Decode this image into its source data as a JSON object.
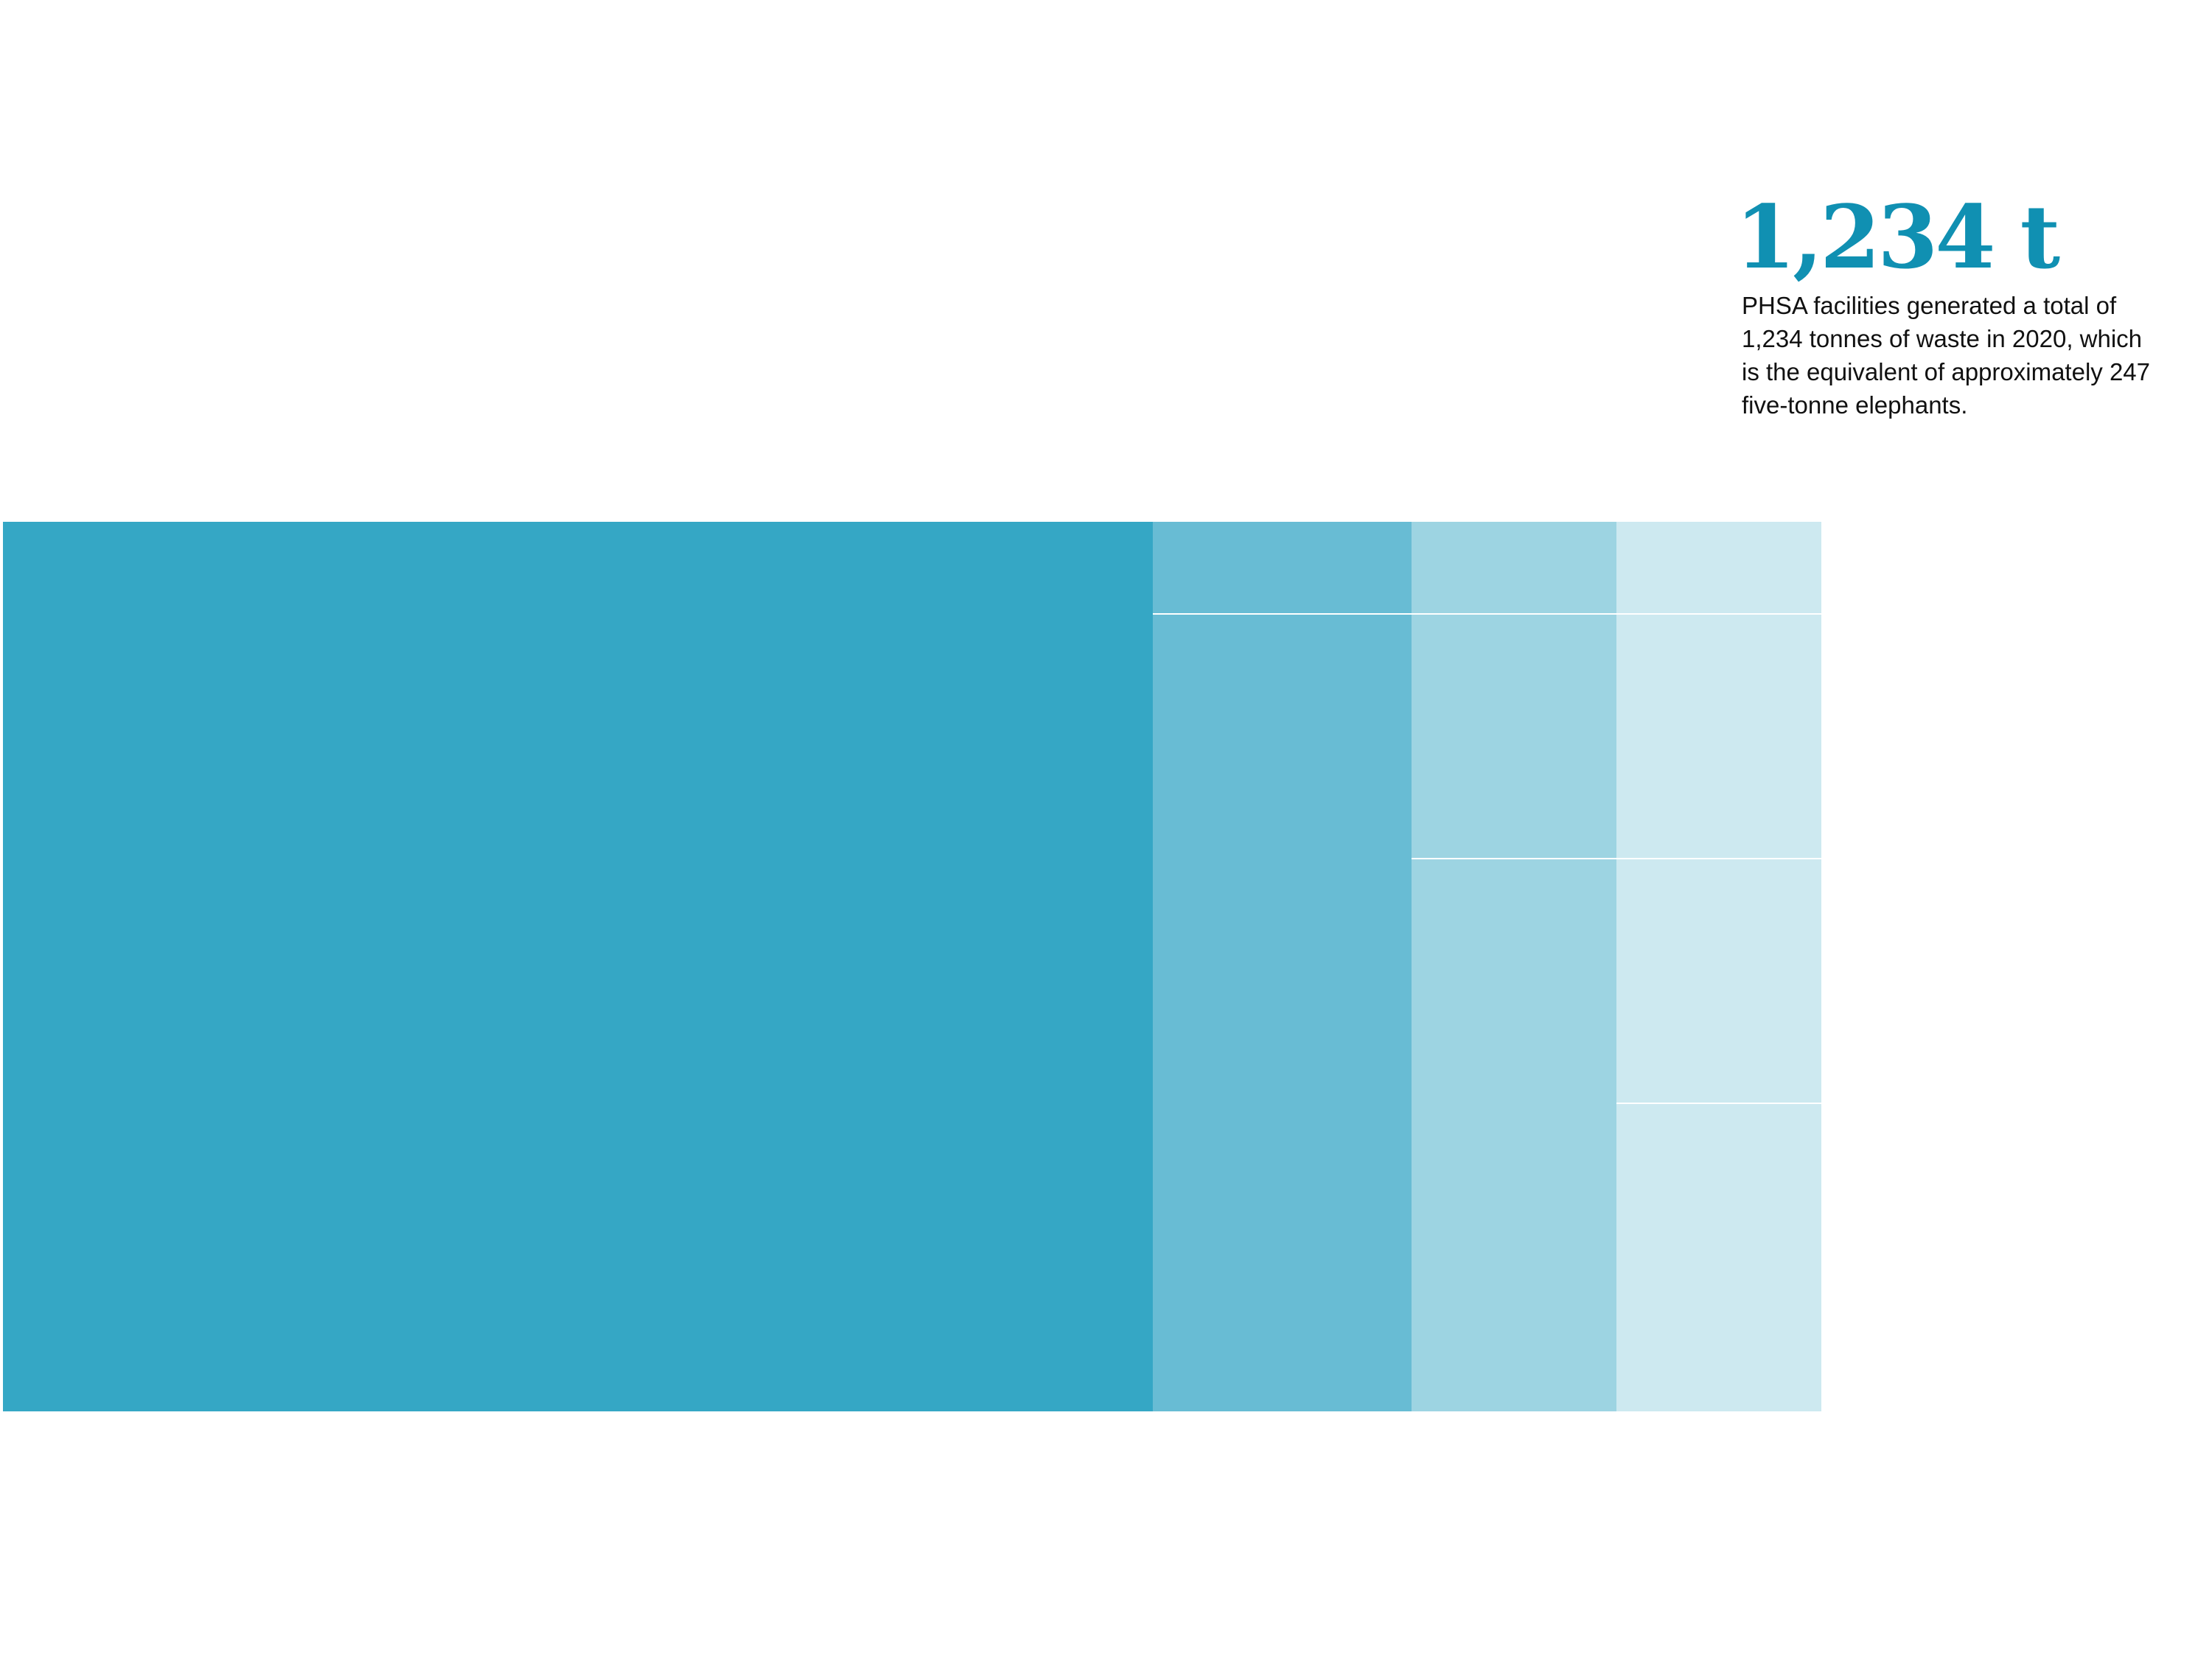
{
  "headline": "1,234 t",
  "description": [
    "PHSA facilities generated a total of",
    "1,234 tonnes of waste in 2020, which",
    "is the equivalent of approximately 247",
    "five-tonne elephants."
  ]
}
